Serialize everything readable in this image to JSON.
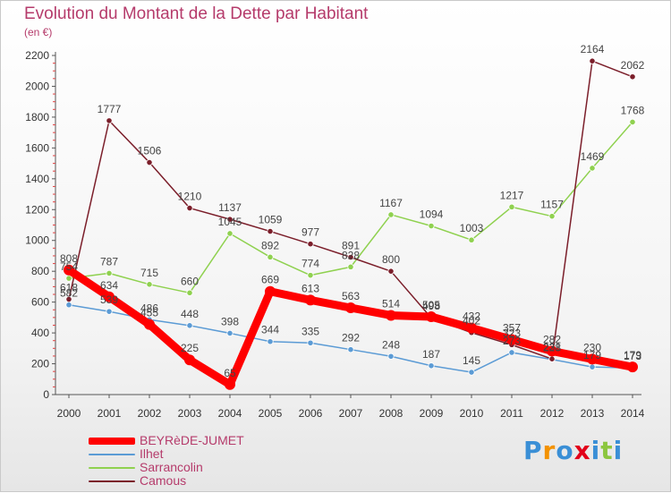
{
  "chart_data": {
    "type": "line",
    "title": "Evolution du Montant de la Dette par Habitant",
    "subtitle": "(en €)",
    "x": [
      "2000",
      "2001",
      "2002",
      "2003",
      "2004",
      "2005",
      "2006",
      "2007",
      "2008",
      "2009",
      "2010",
      "2011",
      "2012",
      "2013",
      "2014"
    ],
    "ylim": [
      0,
      2200
    ],
    "yticks": [
      0,
      200,
      400,
      600,
      800,
      1000,
      1200,
      1400,
      1600,
      1800,
      2000,
      2200
    ],
    "grid": false,
    "legend_position": "bottom-left",
    "series": [
      {
        "name": "BEYRèDE-JUMET",
        "color": "#ff0000",
        "values": [
          808,
          634,
          455,
          225,
          65,
          669,
          613,
          563,
          514,
          505,
          432,
          357,
          282,
          230,
          179
        ]
      },
      {
        "name": "Ilhet",
        "color": "#5b9bd5",
        "values": [
          582,
          539,
          486,
          448,
          398,
          344,
          335,
          292,
          248,
          187,
          145,
          273,
          228,
          179,
          173
        ]
      },
      {
        "name": "Sarrancolin",
        "color": "#8fd14f",
        "values": [
          754,
          787,
          715,
          660,
          1045,
          892,
          774,
          828,
          1167,
          1094,
          1003,
          1217,
          1157,
          1469,
          1768
        ]
      },
      {
        "name": "Camous",
        "color": "#7b1e2a",
        "values": [
          618,
          1777,
          1506,
          1210,
          1137,
          1059,
          977,
          891,
          800,
          498,
          402,
          323,
          231,
          2164,
          2062
        ]
      }
    ]
  },
  "brand": {
    "letters": [
      "P",
      "r",
      "o",
      "x",
      "i",
      "t",
      "i"
    ],
    "colors": [
      "#3a8fd6",
      "#f39200",
      "#3a8fd6",
      "#e2001a",
      "#3a8fd6",
      "#8cc63f",
      "#3a8fd6"
    ]
  }
}
